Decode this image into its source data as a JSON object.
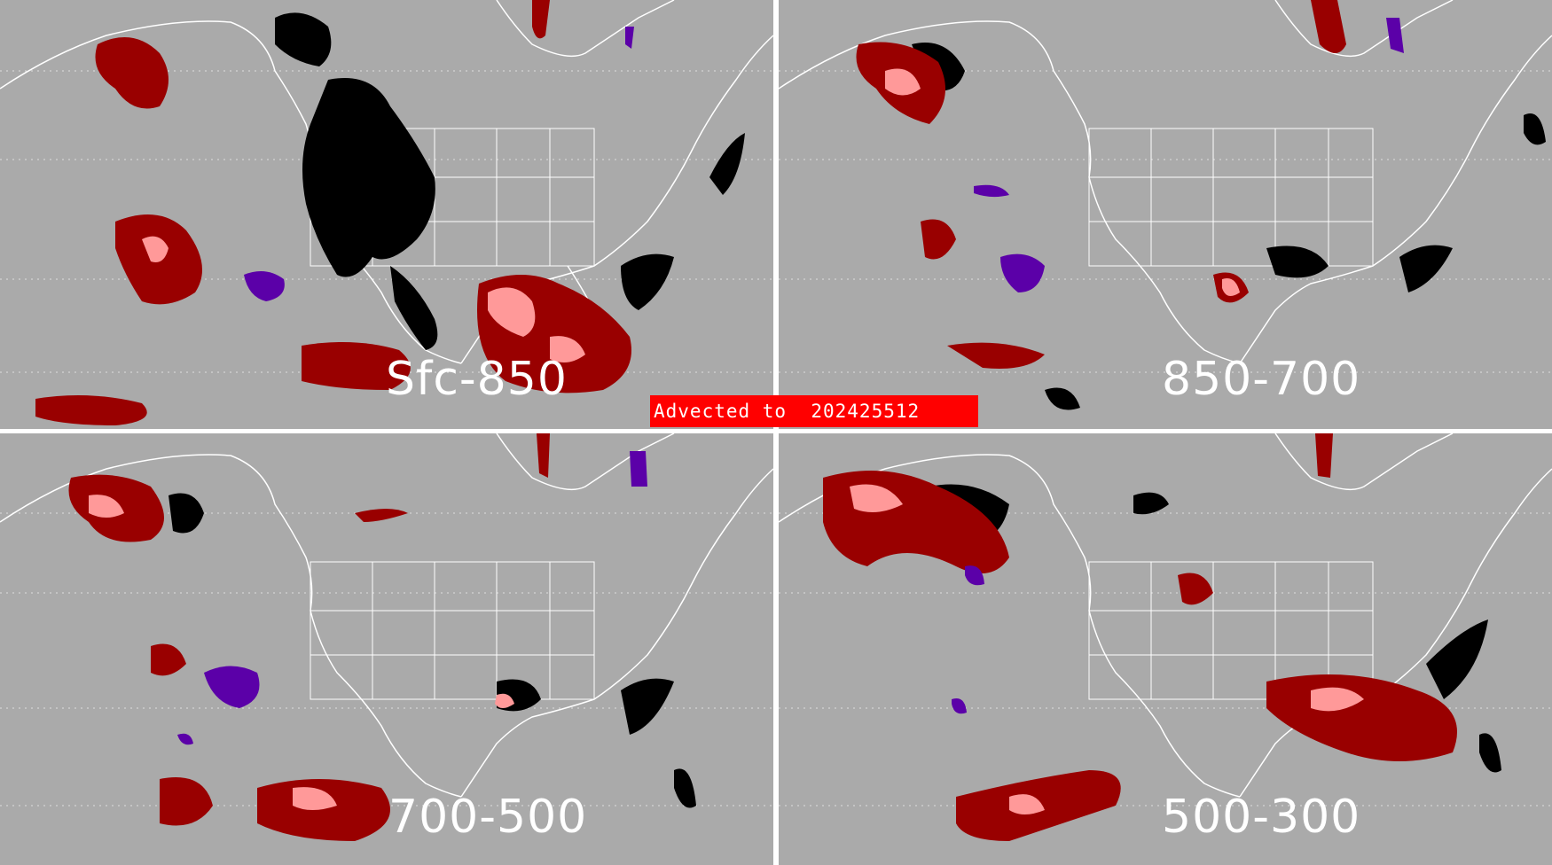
{
  "panels": [
    {
      "id": "tl",
      "layer": "Sfc-850"
    },
    {
      "id": "tr",
      "layer": "850-700"
    },
    {
      "id": "bl",
      "layer": "700-500"
    },
    {
      "id": "br",
      "layer": "500-300"
    }
  ],
  "banner": {
    "text": "Advected to  202425512"
  },
  "colors": {
    "background": "#aaaaaa",
    "coastline": "#ffffff",
    "dark_red": "#990000",
    "pink": "#ff9999",
    "black": "#000000",
    "purple": "#5b00a8",
    "banner": "#ff0000"
  }
}
